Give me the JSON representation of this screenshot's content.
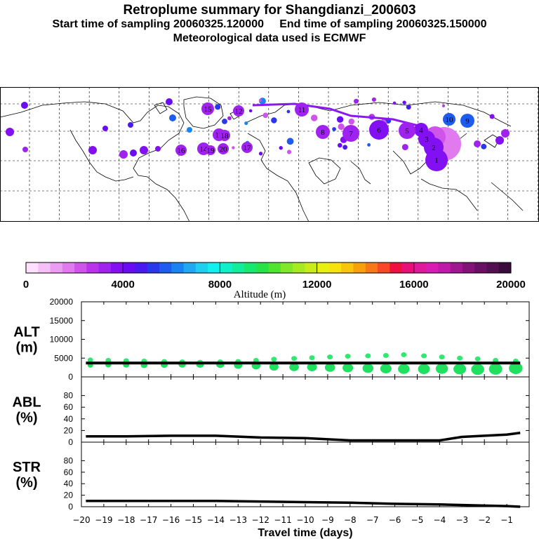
{
  "header": {
    "title": "Retroplume summary for Shangdianzi_200603",
    "sampling": "Start time of sampling 20060325.120000     End time of sampling 20060325.150000",
    "met": "Meteorological data used is ECMWF"
  },
  "colorbar": {
    "ticks": [
      "0",
      "4000",
      "8000",
      "12000",
      "16000",
      "20000"
    ],
    "label": "Altitude (m)",
    "colors": [
      "#fde0fd",
      "#f5c0f8",
      "#ec9cf3",
      "#e07aee",
      "#cf55ea",
      "#b833ea",
      "#9f22ee",
      "#8210f2",
      "#6a0cf3",
      "#4a18f0",
      "#2a38ec",
      "#1e5cef",
      "#1a82f2",
      "#20a8f0",
      "#1ed0ee",
      "#10f0ee",
      "#10f0c8",
      "#10ee9c",
      "#16e870",
      "#26e448",
      "#50e430",
      "#80e828",
      "#a6ea20",
      "#c8ec18",
      "#e8f010",
      "#f8e20c",
      "#f8c40c",
      "#f8a00c",
      "#f87818",
      "#f84828",
      "#f01040",
      "#e81078",
      "#e0189c",
      "#d81cb4",
      "#c01aa8",
      "#a01890",
      "#821478",
      "#6a1064",
      "#521050",
      "#3a0c3c"
    ]
  },
  "map": {
    "markers": [
      {
        "n": "1",
        "alt": 3700
      },
      {
        "n": "2",
        "alt": 3600
      },
      {
        "n": "3",
        "alt": 3600
      },
      {
        "n": "4",
        "alt": 3500
      },
      {
        "n": "5",
        "alt": 3400
      },
      {
        "n": "6",
        "alt": 3500
      },
      {
        "n": "7",
        "alt": 3300
      },
      {
        "n": "8",
        "alt": 3300
      },
      {
        "n": "9",
        "alt": 5800
      },
      {
        "n": "10",
        "alt": 5600
      },
      {
        "n": "11",
        "alt": 3200
      },
      {
        "n": "12",
        "alt": 3100
      },
      {
        "n": "13",
        "alt": 3100
      },
      {
        "n": "14",
        "alt": 3000
      },
      {
        "n": "15",
        "alt": 3000
      },
      {
        "n": "16",
        "alt": 3300
      },
      {
        "n": "17",
        "alt": 3200
      },
      {
        "n": "18",
        "alt": 3200
      },
      {
        "n": "19",
        "alt": 3100
      },
      {
        "n": "20",
        "alt": 3100
      }
    ]
  },
  "chart_data": [
    {
      "type": "scatter",
      "panel": "ALT",
      "ylabel": "ALT\n(m)",
      "ylabel_lines": [
        "ALT",
        "(m)"
      ],
      "ylim": [
        0,
        20000
      ],
      "yticks": [
        "0",
        "5000",
        "10000",
        "15000",
        "20000"
      ],
      "xlim": [
        -20,
        0
      ],
      "mean_line": {
        "name": "mean altitude",
        "x": [
          -19.8,
          -0.4
        ],
        "y": [
          3700,
          3700
        ]
      },
      "clusters": [
        {
          "x": -19.6,
          "y": [
            3100,
            4500
          ]
        },
        {
          "x": -18.8,
          "y": [
            3200,
            4400
          ]
        },
        {
          "x": -18,
          "y": [
            3200,
            4300
          ]
        },
        {
          "x": -17.2,
          "y": [
            3100,
            4200
          ]
        },
        {
          "x": -16.3,
          "y": [
            3200,
            4100
          ]
        },
        {
          "x": -15.5,
          "y": [
            3300,
            4000
          ]
        },
        {
          "x": -14.7,
          "y": [
            3300,
            3900
          ]
        },
        {
          "x": -13.8,
          "y": [
            3300,
            4000
          ]
        },
        {
          "x": -13,
          "y": [
            3100,
            4100
          ]
        },
        {
          "x": -12.2,
          "y": [
            3000,
            4400
          ]
        },
        {
          "x": -11.4,
          "y": [
            2700,
            4700
          ]
        },
        {
          "x": -10.5,
          "y": [
            2600,
            4900
          ]
        },
        {
          "x": -9.7,
          "y": [
            2600,
            5100
          ]
        },
        {
          "x": -8.9,
          "y": [
            2500,
            5300
          ]
        },
        {
          "x": -8.1,
          "y": [
            2400,
            5500
          ]
        },
        {
          "x": -7.2,
          "y": [
            2300,
            5600
          ]
        },
        {
          "x": -6.4,
          "y": [
            2200,
            5700
          ]
        },
        {
          "x": -5.6,
          "y": [
            2100,
            5900
          ]
        },
        {
          "x": -4.7,
          "y": [
            2100,
            5600
          ]
        },
        {
          "x": -3.9,
          "y": [
            2200,
            5300
          ]
        },
        {
          "x": -3.1,
          "y": [
            2100,
            5000
          ]
        },
        {
          "x": -2.3,
          "y": [
            2000,
            4800
          ]
        },
        {
          "x": -1.5,
          "y": [
            2100,
            4400
          ]
        },
        {
          "x": -0.6,
          "y": [
            2300,
            4200
          ]
        }
      ]
    },
    {
      "type": "line",
      "panel": "ABL",
      "ylabel_lines": [
        "ABL",
        "(%)"
      ],
      "ylim": [
        0,
        100
      ],
      "yticks": [
        "0",
        "20",
        "40",
        "60",
        "80"
      ],
      "xlim": [
        -20,
        0
      ],
      "series": [
        {
          "name": "ABL",
          "x": [
            -19.8,
            -18,
            -16,
            -14,
            -12,
            -10,
            -9,
            -8,
            -6,
            -4,
            -3.5,
            -3,
            -2,
            -1,
            -0.4
          ],
          "y": [
            10,
            10,
            11,
            11,
            8,
            7,
            5,
            3,
            3,
            3,
            6,
            9,
            11,
            13,
            16
          ]
        }
      ]
    },
    {
      "type": "line",
      "panel": "STR",
      "ylabel_lines": [
        "STR",
        "(%)"
      ],
      "ylim": [
        0,
        100
      ],
      "yticks": [
        "0",
        "20",
        "40",
        "60",
        "80"
      ],
      "xlim": [
        -20,
        0
      ],
      "xlabel": "Travel time (days)",
      "xticks": [
        "-20",
        "-19",
        "-18",
        "-17",
        "-16",
        "-15",
        "-14",
        "-13",
        "-12",
        "-11",
        "-10",
        "-9",
        "-8",
        "-7",
        "-6",
        "-5",
        "-4",
        "-3",
        "-2",
        "-1"
      ],
      "series": [
        {
          "name": "STR",
          "x": [
            -19.8,
            -18,
            -16,
            -14,
            -12,
            -10,
            -8,
            -6,
            -4,
            -2,
            -1,
            -0.4
          ],
          "y": [
            10,
            10,
            10,
            10,
            9,
            8,
            7,
            5,
            4,
            2,
            1,
            0
          ]
        }
      ]
    }
  ]
}
